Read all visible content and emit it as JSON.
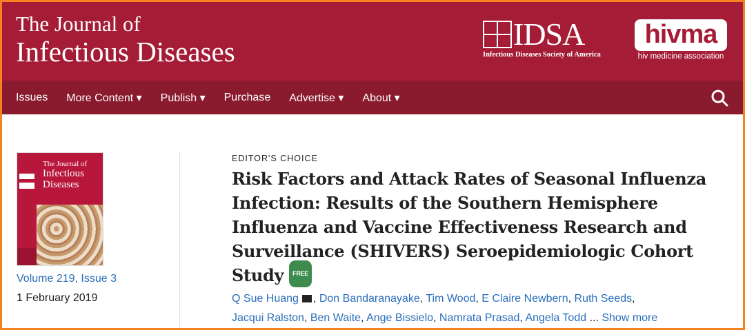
{
  "header": {
    "journal_title_line1": "The Journal of",
    "journal_title_line2": "Infectious Diseases",
    "idsa_logo": "IDSA",
    "idsa_subtitle": "Infectious Diseases Society of America",
    "hivma_logo": "hivma",
    "hivma_subtitle": "hiv medicine association"
  },
  "nav": {
    "items": [
      {
        "label": "Issues"
      },
      {
        "label": "More Content ▾"
      },
      {
        "label": "Publish ▾"
      },
      {
        "label": "Purchase"
      },
      {
        "label": "Advertise ▾"
      },
      {
        "label": "About ▾"
      }
    ],
    "search_icon": "search-icon"
  },
  "issue": {
    "cover_title_line1": "The Journal of",
    "cover_title_line2": "Infectious Diseases",
    "volume": "Volume 219, Issue 3",
    "date": "1 February 2019"
  },
  "article": {
    "kicker": "EDITOR'S CHOICE",
    "title": "Risk Factors and Attack Rates of Seasonal Influenza Infection: Results of the Southern Hemisphere Influenza and Vaccine Effectiveness Research and Surveillance (SHIVERS) Seroepidemiologic Cohort Study",
    "free_badge": "FREE",
    "authors": [
      "Q Sue Huang",
      "Don Bandaranayake",
      "Tim Wood",
      "E Claire Newbern",
      "Ruth Seeds",
      "Jacqui Ralston",
      "Ben Waite",
      "Ange Bissielo",
      "Namrata Prasad",
      "Angela Todd"
    ],
    "ellipsis": "...",
    "show_more": "Show more"
  },
  "colors": {
    "header": "#a51c36",
    "nav": "#8a1a2d",
    "link": "#2a6ebb",
    "frame": "#f58220"
  }
}
